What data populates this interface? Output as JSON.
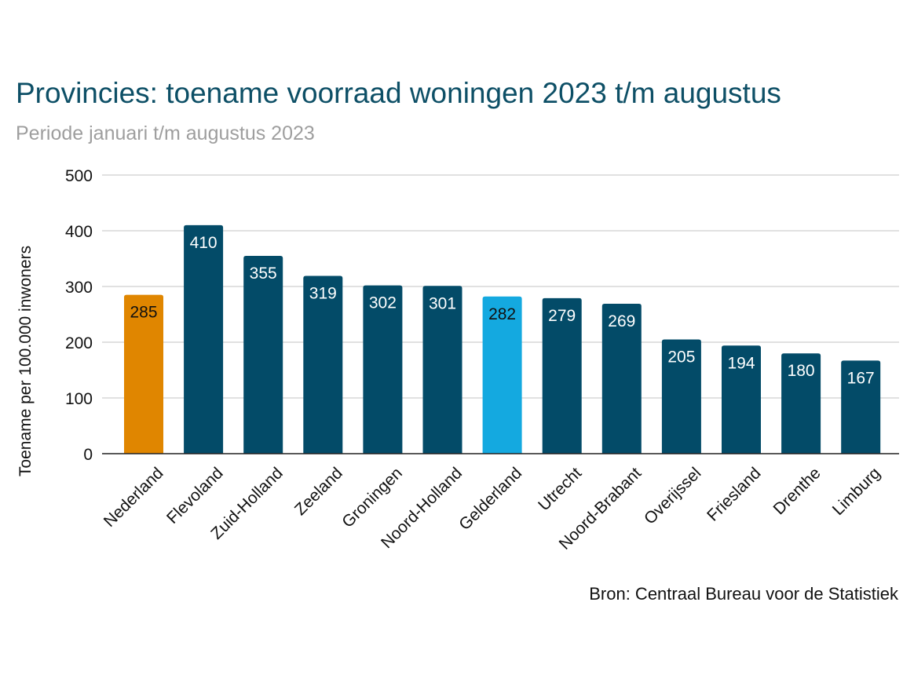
{
  "header": {
    "title": "Provincies: toename voorraad woningen 2023 t/m augustus",
    "subtitle": "Periode januari t/m augustus 2023"
  },
  "footer": {
    "source": "Bron: Centraal Bureau voor de Statistiek"
  },
  "colors": {
    "default_bar": "#034b68",
    "nederland_bar": "#e08600",
    "gelderland_bar": "#14a9e0",
    "grid": "#cfcfcf",
    "axis": "#222222"
  },
  "chart_data": {
    "type": "bar",
    "title": "Provincies: toename voorraad woningen 2023 t/m augustus",
    "subtitle": "Periode januari t/m augustus 2023",
    "xlabel": "",
    "ylabel": "Toename per 100.000 inwoners",
    "ylim": [
      0,
      500
    ],
    "yticks": [
      0,
      100,
      200,
      300,
      400,
      500
    ],
    "grid": true,
    "legend": "none",
    "categories": [
      "Nederland",
      "Flevoland",
      "Zuid-Holland",
      "Zeeland",
      "Groningen",
      "Noord-Holland",
      "Gelderland",
      "Utrecht",
      "Noord-Brabant",
      "Overijssel",
      "Friesland",
      "Drenthe",
      "Limburg"
    ],
    "values": [
      285,
      410,
      355,
      319,
      302,
      301,
      282,
      279,
      269,
      205,
      194,
      180,
      167
    ],
    "bar_colors": [
      "#e08600",
      "#034b68",
      "#034b68",
      "#034b68",
      "#034b68",
      "#034b68",
      "#14a9e0",
      "#034b68",
      "#034b68",
      "#034b68",
      "#034b68",
      "#034b68",
      "#034b68"
    ],
    "label_colors": [
      "#111111",
      "#ffffff",
      "#ffffff",
      "#ffffff",
      "#ffffff",
      "#ffffff",
      "#111111",
      "#ffffff",
      "#ffffff",
      "#ffffff",
      "#ffffff",
      "#ffffff",
      "#ffffff"
    ]
  }
}
